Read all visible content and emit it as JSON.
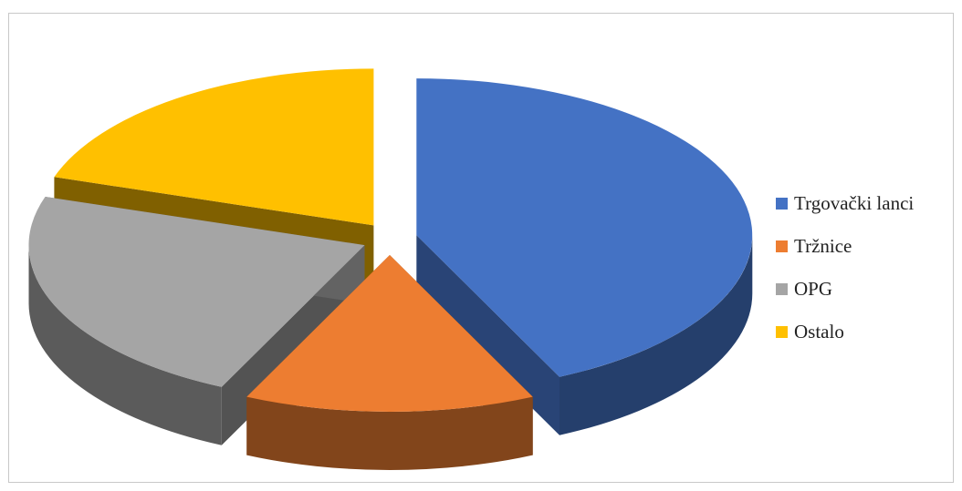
{
  "chart_data": {
    "type": "pie",
    "title": "",
    "style": "3d-exploded",
    "legend_position": "right",
    "categories": [
      "Trgovački lanci",
      "Tržnice",
      "OPG",
      "Ostalo"
    ],
    "values": [
      43,
      14,
      23,
      20
    ],
    "colors": [
      "#4472c4",
      "#ed7d31",
      "#a5a5a5",
      "#ffc000"
    ]
  }
}
